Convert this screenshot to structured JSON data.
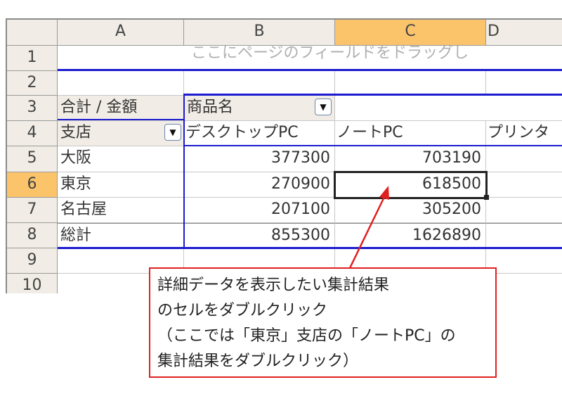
{
  "columns": [
    "A",
    "B",
    "C",
    "D"
  ],
  "rows": [
    "1",
    "2",
    "3",
    "4",
    "5",
    "6",
    "7",
    "8",
    "9",
    "10"
  ],
  "selected_column": "C",
  "selected_row": "6",
  "page_field_hint": "ここにページのフィールドをドラッグし",
  "pivot": {
    "data_label": "合計 / 金額",
    "column_field": "商品名",
    "row_field": "支店",
    "column_items": [
      "デスクトップPC",
      "ノートPC",
      "プリンタ"
    ],
    "table": [
      {
        "branch": "大阪",
        "values": [
          "377300",
          "703190"
        ]
      },
      {
        "branch": "東京",
        "values": [
          "270900",
          "618500"
        ]
      },
      {
        "branch": "名古屋",
        "values": [
          "207100",
          "305200"
        ]
      },
      {
        "branch": "総計",
        "values": [
          "855300",
          "1626890"
        ]
      }
    ]
  },
  "callout": {
    "lines": [
      "詳細データを表示したい集計結果",
      "のセルをダブルクリック",
      "（ここでは「東京」支店の「ノートPC」の",
      "集計結果をダブルクリック）"
    ],
    "border_color": "#e02020"
  },
  "colors": {
    "pivot_border": "#1b1bd0",
    "selected_header": "#fbc46b"
  }
}
